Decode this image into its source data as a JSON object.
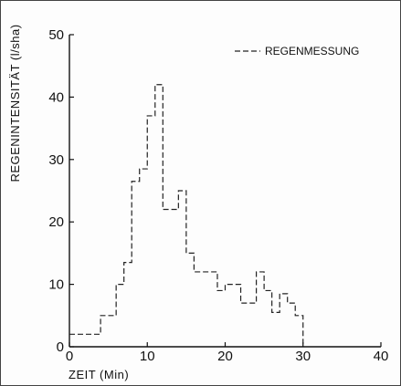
{
  "chart_data": {
    "type": "line",
    "style": "step",
    "xlabel": "ZEIT  (Min)",
    "ylabel": "REGENINTENSITÄT  (l/sha)",
    "xlim": [
      0,
      40
    ],
    "ylim": [
      0,
      50
    ],
    "xticks": [
      "0",
      "10",
      "20",
      "30",
      "40"
    ],
    "yticks": [
      "0",
      "10",
      "20",
      "30",
      "40",
      "50"
    ],
    "grid": false,
    "legend_position": "top-right",
    "series": [
      {
        "name": "REGENMESSUNG",
        "line_style": "dashed",
        "x": [
          0,
          4,
          6,
          7,
          8,
          9,
          10,
          11,
          12,
          13,
          14,
          15,
          16,
          17,
          18,
          19,
          20,
          21,
          22,
          23,
          24,
          25,
          26,
          27,
          28,
          29,
          30
        ],
        "y": [
          2,
          5,
          10,
          13.5,
          26.5,
          28.5,
          37,
          42,
          22,
          22,
          25,
          15,
          12,
          12,
          12,
          9,
          10,
          10,
          7,
          7,
          12,
          9,
          5.5,
          8.5,
          7,
          5,
          0
        ]
      }
    ]
  }
}
